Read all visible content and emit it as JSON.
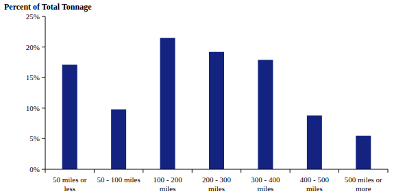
{
  "chart_data": {
    "type": "bar",
    "ylabel": "Percent of Total Tonnage",
    "categories": [
      "50 miles or less",
      "50 - 100 miles",
      "100 - 200 miles",
      "200 - 300 miles",
      "300 - 400 miles",
      "400 - 500 miles",
      "500 miles or more"
    ],
    "values": [
      17.1,
      9.8,
      21.5,
      19.2,
      17.9,
      8.8,
      5.5
    ],
    "color": "#13237f",
    "ylim": [
      0,
      25
    ],
    "yticks": [
      {
        "value": 0,
        "label": "0%"
      },
      {
        "value": 5,
        "label": "5%"
      },
      {
        "value": 10,
        "label": "10%"
      },
      {
        "value": 15,
        "label": "15%"
      },
      {
        "value": 20,
        "label": "20%"
      },
      {
        "value": 25,
        "label": "25%"
      }
    ],
    "grid": false
  }
}
